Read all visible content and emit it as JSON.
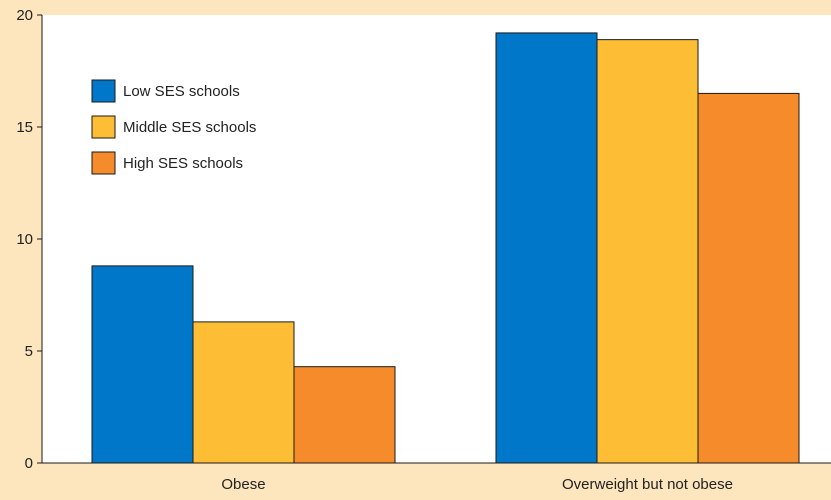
{
  "chart_data": {
    "type": "bar",
    "categories": [
      "Obese",
      "Overweight but not obese"
    ],
    "series": [
      {
        "name": "Low SES schools",
        "values": [
          8.8,
          19.2
        ],
        "color": "#0077c8"
      },
      {
        "name": "Middle SES schools",
        "values": [
          6.3,
          18.9
        ],
        "color": "#fdbe35"
      },
      {
        "name": "High SES schools",
        "values": [
          4.3,
          16.5
        ],
        "color": "#f68b2c"
      }
    ],
    "yticks": [
      0,
      5,
      10,
      15,
      20
    ],
    "ylim": [
      0,
      20
    ],
    "title": "",
    "xlabel": "",
    "ylabel": "",
    "legend_position": "top-left",
    "grid": false
  },
  "colors": {
    "page_background": "#fde5bd",
    "plot_background": "#ffffff",
    "bar_outline": "#1a1a1a"
  }
}
